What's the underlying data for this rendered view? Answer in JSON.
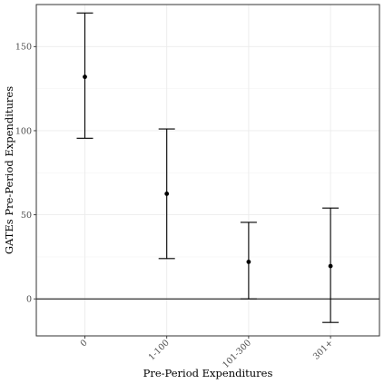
{
  "chart_data": {
    "type": "scatter",
    "style": "point-with-errorbar",
    "categories": [
      "0",
      "1-100",
      "101-300",
      "301+"
    ],
    "series": [
      {
        "estimate": [
          132,
          62.5,
          22,
          19.5
        ],
        "lower": [
          95.5,
          24,
          0,
          -14
        ],
        "upper": [
          170,
          101,
          45.5,
          54
        ]
      }
    ],
    "xlabel": "Pre-Period Expenditures",
    "ylabel": "GATEs Pre-Period Expenditures",
    "ylim": [
      -22,
      175
    ],
    "y_ticks": [
      0,
      50,
      100,
      150
    ],
    "reference_line": 0,
    "grid": true,
    "x_tick_rotation": "45-degree",
    "colors": {
      "mark": "#000000",
      "grid": "#ebebeb",
      "panel_border": "#333333"
    }
  }
}
